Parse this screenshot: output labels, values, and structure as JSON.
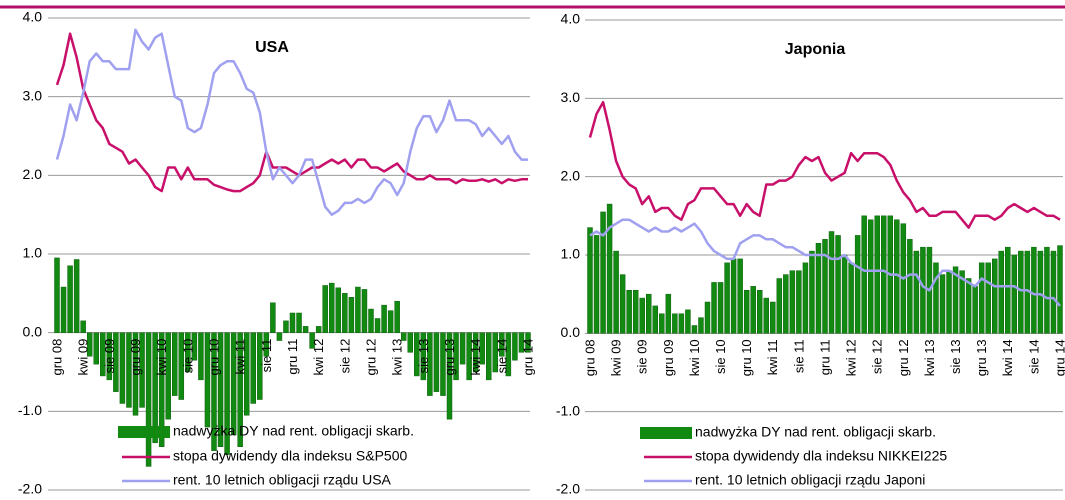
{
  "chart_data": [
    {
      "type": "bar-line",
      "title": "USA",
      "categories": [
        "gru 08",
        null,
        null,
        null,
        "kwi 09",
        null,
        null,
        null,
        "sie 09",
        null,
        null,
        null,
        "gru 09",
        null,
        null,
        null,
        "kwi 10",
        null,
        null,
        null,
        "sie 10",
        null,
        null,
        null,
        "gru 10",
        null,
        null,
        null,
        "kwi 11",
        null,
        null,
        null,
        "sie 11",
        null,
        null,
        null,
        "gru 11",
        null,
        null,
        null,
        "kwi 12",
        null,
        null,
        null,
        "sie 12",
        null,
        null,
        null,
        "gru 12",
        null,
        null,
        null,
        "kwi 13",
        null,
        null,
        null,
        "sie 13",
        null,
        null,
        null,
        "gru 13",
        null,
        null,
        null,
        "kwi 14",
        null,
        null,
        null,
        "sie 14",
        null,
        null,
        null,
        "gru 14"
      ],
      "ylim": [
        -2,
        4
      ],
      "yticks": [
        {
          "value": -2,
          "label": "-2.0"
        },
        {
          "value": -1,
          "label": "-1.0"
        },
        {
          "value": 0,
          "label": "0.0"
        },
        {
          "value": 1,
          "label": "1.0"
        },
        {
          "value": 2,
          "label": "2.0"
        },
        {
          "value": 3,
          "label": "3.0"
        },
        {
          "value": 4,
          "label": "4.0"
        }
      ],
      "grid": true,
      "legend": "bottom",
      "series": [
        {
          "name": "nadwyżka DY nad rent. obligacji skarb.",
          "kind": "bar",
          "color": "#128a12",
          "values": [
            0.95,
            0.58,
            0.85,
            0.93,
            0.15,
            -0.3,
            -0.4,
            -0.55,
            -0.6,
            -0.75,
            -0.9,
            -0.95,
            -1.05,
            -0.95,
            -1.7,
            -1.4,
            -1.45,
            -1.1,
            -0.8,
            -0.85,
            -0.5,
            -0.35,
            -0.6,
            -1.2,
            -1.5,
            -1.45,
            -1.55,
            -1.3,
            -1.45,
            -1.05,
            -0.9,
            -0.85,
            -0.3,
            0.38,
            -0.1,
            0.15,
            0.25,
            0.25,
            0.08,
            -0.2,
            0.08,
            0.6,
            0.63,
            0.57,
            0.5,
            0.45,
            0.58,
            0.55,
            0.3,
            0.18,
            0.35,
            0.28,
            0.4,
            -0.1,
            -0.25,
            -0.55,
            -0.6,
            -0.8,
            -0.75,
            -0.8,
            -1.1,
            -0.6,
            -0.4,
            -0.6,
            -0.5,
            -0.4,
            -0.6,
            -0.5,
            -0.3,
            -0.55,
            -0.35,
            -0.25,
            -0.25
          ]
        },
        {
          "name": "stopa dywidendy dla indeksu S&P500",
          "kind": "line",
          "color": "#c8106a",
          "values": [
            3.15,
            3.4,
            3.8,
            3.5,
            3.1,
            2.9,
            2.7,
            2.6,
            2.4,
            2.35,
            2.3,
            2.15,
            2.2,
            2.1,
            2.0,
            1.85,
            1.8,
            2.1,
            2.1,
            1.95,
            2.1,
            1.95,
            1.95,
            1.95,
            1.88,
            1.85,
            1.82,
            1.8,
            1.8,
            1.85,
            1.9,
            2.0,
            2.3,
            2.1,
            2.1,
            2.1,
            2.05,
            2.0,
            2.05,
            2.1,
            2.1,
            2.15,
            2.2,
            2.15,
            2.2,
            2.1,
            2.2,
            2.2,
            2.1,
            2.1,
            2.05,
            2.1,
            2.15,
            2.05,
            2.0,
            1.95,
            1.95,
            2.0,
            1.95,
            1.95,
            1.95,
            1.9,
            1.95,
            1.93,
            1.93,
            1.95,
            1.92,
            1.95,
            1.9,
            1.95,
            1.93,
            1.95,
            1.95
          ]
        },
        {
          "name": "rent. 10 letnich obligacji rządu USA",
          "kind": "line",
          "color": "#a0a0f0",
          "values": [
            2.2,
            2.5,
            2.9,
            2.7,
            3.05,
            3.45,
            3.55,
            3.45,
            3.45,
            3.35,
            3.35,
            3.35,
            3.85,
            3.7,
            3.6,
            3.75,
            3.8,
            3.4,
            3.0,
            2.95,
            2.6,
            2.55,
            2.6,
            2.9,
            3.3,
            3.4,
            3.45,
            3.45,
            3.3,
            3.1,
            3.05,
            2.8,
            2.3,
            1.95,
            2.1,
            2.0,
            1.9,
            2.0,
            2.2,
            2.2,
            1.9,
            1.6,
            1.5,
            1.55,
            1.65,
            1.65,
            1.7,
            1.65,
            1.7,
            1.85,
            1.95,
            1.9,
            1.75,
            1.9,
            2.3,
            2.6,
            2.75,
            2.75,
            2.55,
            2.7,
            2.95,
            2.7,
            2.7,
            2.7,
            2.65,
            2.5,
            2.6,
            2.5,
            2.4,
            2.5,
            2.3,
            2.2,
            2.2
          ]
        }
      ]
    },
    {
      "type": "bar-line",
      "title": "Japonia",
      "categories": [
        "gru 08",
        null,
        null,
        null,
        "kwi 09",
        null,
        null,
        null,
        "sie 09",
        null,
        null,
        null,
        "gru 09",
        null,
        null,
        null,
        "kwi 10",
        null,
        null,
        null,
        "sie 10",
        null,
        null,
        null,
        "gru 10",
        null,
        null,
        null,
        "kwi 11",
        null,
        null,
        null,
        "sie 11",
        null,
        null,
        null,
        "gru 11",
        null,
        null,
        null,
        "kwi 12",
        null,
        null,
        null,
        "sie 12",
        null,
        null,
        null,
        "gru 12",
        null,
        null,
        null,
        "kwi 13",
        null,
        null,
        null,
        "sie 13",
        null,
        null,
        null,
        "gru 13",
        null,
        null,
        null,
        "kwi 14",
        null,
        null,
        null,
        "sie 14",
        null,
        null,
        null,
        "gru 14"
      ],
      "ylim": [
        -2,
        4
      ],
      "yticks": [
        {
          "value": -2,
          "label": "-2.0"
        },
        {
          "value": -1,
          "label": "-1.0"
        },
        {
          "value": 0,
          "label": "0.0"
        },
        {
          "value": 1,
          "label": "1.0"
        },
        {
          "value": 2,
          "label": "2.0"
        },
        {
          "value": 3,
          "label": "3.0"
        },
        {
          "value": 4,
          "label": "4.0"
        }
      ],
      "grid": true,
      "legend": "bottom",
      "series": [
        {
          "name": "nadwyżka DY nad rent. obligacji skarb.",
          "kind": "bar",
          "color": "#128a12",
          "values": [
            1.35,
            1.25,
            1.55,
            1.65,
            1.05,
            0.75,
            0.55,
            0.55,
            0.45,
            0.5,
            0.35,
            0.25,
            0.5,
            0.25,
            0.25,
            0.3,
            0.1,
            0.2,
            0.4,
            0.65,
            0.65,
            0.9,
            0.95,
            0.95,
            0.55,
            0.6,
            0.55,
            0.45,
            0.4,
            0.7,
            0.75,
            0.8,
            0.8,
            0.9,
            1.05,
            1.15,
            1.2,
            1.3,
            1.25,
            1.0,
            0.9,
            1.25,
            1.5,
            1.45,
            1.5,
            1.5,
            1.5,
            1.45,
            1.4,
            1.2,
            1.05,
            1.1,
            1.1,
            0.9,
            0.75,
            0.8,
            0.85,
            0.8,
            0.7,
            0.6,
            0.9,
            0.9,
            0.95,
            1.05,
            1.1,
            1.0,
            1.05,
            1.05,
            1.1,
            1.05,
            1.1,
            1.05,
            1.12
          ]
        },
        {
          "name": "stopa dywidendy dla indeksu NIKKEI225",
          "kind": "line",
          "color": "#c8106a",
          "values": [
            2.5,
            2.8,
            2.95,
            2.6,
            2.2,
            2.0,
            1.9,
            1.85,
            1.65,
            1.75,
            1.55,
            1.6,
            1.6,
            1.5,
            1.45,
            1.65,
            1.7,
            1.85,
            1.85,
            1.85,
            1.75,
            1.65,
            1.65,
            1.5,
            1.65,
            1.55,
            1.5,
            1.9,
            1.9,
            1.95,
            1.95,
            2.0,
            2.15,
            2.25,
            2.2,
            2.25,
            2.05,
            1.95,
            2.0,
            2.05,
            2.3,
            2.2,
            2.3,
            2.3,
            2.3,
            2.25,
            2.15,
            1.95,
            1.8,
            1.7,
            1.55,
            1.6,
            1.5,
            1.5,
            1.55,
            1.55,
            1.55,
            1.45,
            1.35,
            1.5,
            1.5,
            1.5,
            1.45,
            1.5,
            1.6,
            1.65,
            1.6,
            1.55,
            1.6,
            1.55,
            1.5,
            1.5,
            1.45
          ]
        },
        {
          "name": "rent. 10 letnich obligacji rządu Japoni",
          "kind": "line",
          "color": "#a0a0f0",
          "values": [
            1.25,
            1.3,
            1.25,
            1.35,
            1.4,
            1.45,
            1.45,
            1.4,
            1.35,
            1.3,
            1.35,
            1.3,
            1.3,
            1.35,
            1.3,
            1.35,
            1.4,
            1.3,
            1.15,
            1.05,
            1.0,
            0.95,
            0.95,
            1.15,
            1.2,
            1.25,
            1.25,
            1.2,
            1.2,
            1.15,
            1.1,
            1.1,
            1.05,
            1.0,
            1.0,
            1.0,
            1.0,
            0.95,
            0.95,
            1.0,
            0.9,
            0.85,
            0.8,
            0.8,
            0.8,
            0.8,
            0.75,
            0.75,
            0.7,
            0.75,
            0.75,
            0.6,
            0.55,
            0.7,
            0.8,
            0.8,
            0.75,
            0.7,
            0.65,
            0.6,
            0.7,
            0.65,
            0.6,
            0.6,
            0.6,
            0.6,
            0.55,
            0.55,
            0.5,
            0.5,
            0.45,
            0.45,
            0.35
          ]
        }
      ]
    }
  ]
}
